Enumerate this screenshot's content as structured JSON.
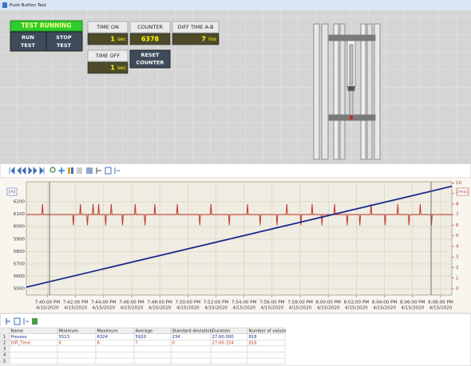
{
  "window_title": "Push Button Test",
  "status": "TEST RUNNING",
  "run_button": [
    "RUN",
    "TEST"
  ],
  "stop_button": [
    "STOP",
    "TEST"
  ],
  "indicators": [
    {
      "label": "TIME ON",
      "value": 1,
      "unit": "sec"
    },
    {
      "label": "COUNTER",
      "value": 6378
    },
    {
      "label": "DIFF TIME A-B",
      "value": 7,
      "unit": "ms"
    },
    {
      "label": "TIME OFF",
      "value": 1,
      "unit": "sec"
    }
  ],
  "reset_button": [
    "RESET",
    "COUNTER"
  ],
  "chart_data": {
    "type": "line",
    "y_label": "[n]",
    "y2_label": "[ms]",
    "xlim": [
      1178.5,
      1208.8
    ],
    "xticks": [
      {
        "value": 1180,
        "label": "7:40:00 PM",
        "sublabel": "4/15/2020"
      },
      {
        "value": 1182,
        "label": "7:42:00 PM",
        "sublabel": "4/15/2020"
      },
      {
        "value": 1184,
        "label": "7:44:00 PM",
        "sublabel": "4/15/2020"
      },
      {
        "value": 1186,
        "label": "7:46:00 PM",
        "sublabel": "4/15/2020"
      },
      {
        "value": 1188,
        "label": "7:48:00 PM",
        "sublabel": "4/15/2020"
      },
      {
        "value": 1190,
        "label": "7:50:00 PM",
        "sublabel": "4/15/2020"
      },
      {
        "value": 1192,
        "label": "7:52:00 PM",
        "sublabel": "4/15/2020"
      },
      {
        "value": 1194,
        "label": "7:54:00 PM",
        "sublabel": "4/15/2020"
      },
      {
        "value": 1196,
        "label": "7:56:00 PM",
        "sublabel": "4/15/2020"
      },
      {
        "value": 1198,
        "label": "7:58:00 PM",
        "sublabel": "4/15/2020"
      },
      {
        "value": 1200,
        "label": "8:00:00 PM",
        "sublabel": "4/15/2020"
      },
      {
        "value": 1202,
        "label": "8:02:00 PM",
        "sublabel": "4/15/2020"
      },
      {
        "value": 1204,
        "label": "8:04:00 PM",
        "sublabel": "4/15/2020"
      },
      {
        "value": 1206,
        "label": "8:06:00 PM",
        "sublabel": "4/15/2020"
      },
      {
        "value": 1208,
        "label": "8:08:00 PM",
        "sublabel": "4/15/2020"
      }
    ],
    "ylim": [
      5450,
      6360
    ],
    "yticks": [
      5500,
      5600,
      5700,
      5800,
      5900,
      6000,
      6100,
      6200
    ],
    "y2lim": [
      -0.6,
      10.1
    ],
    "y2ticks": [
      0,
      1,
      2,
      3,
      4,
      5,
      6,
      7,
      8,
      9,
      10
    ],
    "grid": true,
    "series": [
      {
        "name": "Presses",
        "color": "#1c2a8c",
        "x": [
          1178.5,
          1208.8
        ],
        "values": [
          5513,
          6324
        ]
      },
      {
        "name": "Diff_Time",
        "color": "#c0392b",
        "axis": "y2",
        "x": [
          1178.5,
          1179.6,
          1179.65,
          1179.7,
          1181.8,
          1181.85,
          1181.9,
          1182.3,
          1182.35,
          1182.4,
          1182.8,
          1182.85,
          1182.9,
          1183.2,
          1183.25,
          1183.3,
          1183.6,
          1183.65,
          1183.7,
          1184.1,
          1184.15,
          1184.2,
          1184.5,
          1184.55,
          1184.6,
          1185.3,
          1185.35,
          1185.4,
          1186.2,
          1186.25,
          1186.3,
          1186.9,
          1186.95,
          1187,
          1187.6,
          1187.65,
          1187.7,
          1189.2,
          1189.25,
          1189.3,
          1190.8,
          1190.85,
          1190.9,
          1191.6,
          1191.65,
          1191.7,
          1192.9,
          1192.95,
          1193,
          1194.2,
          1194.25,
          1194.3,
          1195.1,
          1195.15,
          1195.2,
          1196.3,
          1196.35,
          1196.4,
          1197,
          1197.05,
          1197.1,
          1198,
          1198.05,
          1198.1,
          1198.8,
          1198.85,
          1198.9,
          1199.5,
          1199.55,
          1199.6,
          1200.4,
          1200.45,
          1200.5,
          1201.3,
          1201.35,
          1201.4,
          1202.2,
          1202.25,
          1202.3,
          1203,
          1203.05,
          1203.1,
          1204,
          1204.05,
          1204.1,
          1204.9,
          1204.95,
          1205,
          1205.7,
          1205.75,
          1205.8,
          1206.5,
          1206.55,
          1206.6,
          1207.3,
          1207.35,
          1207.4,
          1208.8
        ],
        "values": [
          7,
          7,
          8,
          7,
          7,
          6,
          7,
          7,
          8,
          7,
          7,
          6,
          7,
          7,
          8,
          7,
          7,
          8,
          7,
          7,
          6,
          7,
          7,
          8,
          7,
          7,
          6,
          7,
          7,
          8,
          7,
          7,
          6,
          7,
          7,
          8,
          7,
          7,
          8,
          7,
          7,
          6,
          7,
          7,
          8,
          7,
          7,
          6,
          7,
          7,
          8,
          7,
          7,
          6,
          7,
          7,
          6,
          7,
          7,
          8,
          7,
          7,
          6,
          7,
          7,
          8,
          7,
          7,
          6,
          7,
          7,
          8,
          7,
          7,
          6,
          7,
          7,
          6,
          7,
          7,
          8,
          7,
          7,
          6,
          7,
          7,
          8,
          7,
          7,
          6,
          7,
          7,
          8,
          7,
          7,
          6,
          7,
          7
        ]
      }
    ]
  },
  "table": {
    "columns": [
      "Name",
      "Minimum",
      "Maximum",
      "Average",
      "Standard deviation",
      "Duration",
      "Number of values"
    ],
    "rows": [
      {
        "index": 1,
        "cells": [
          "Presses",
          5513,
          6324,
          5920,
          234,
          "27:00.000",
          818
        ]
      },
      {
        "index": 2,
        "cells": [
          "Diff_Time",
          6,
          8,
          7,
          0,
          "27:00.154",
          818
        ]
      },
      {
        "index": 3,
        "cells": []
      },
      {
        "index": 4,
        "cells": []
      },
      {
        "index": 5,
        "cells": []
      }
    ]
  }
}
